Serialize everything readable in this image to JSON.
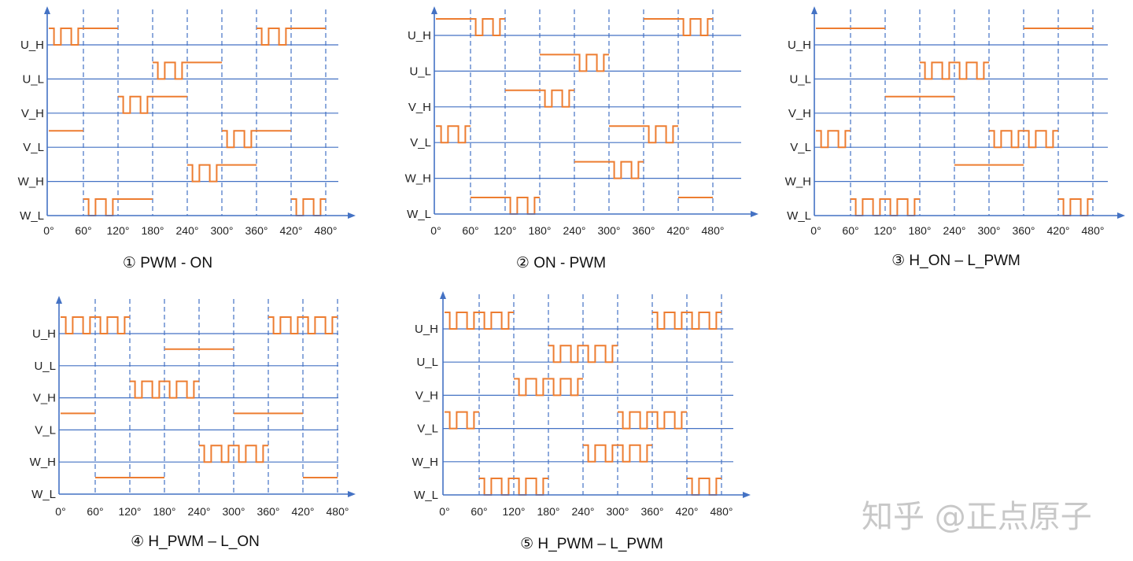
{
  "signals": [
    "U_H",
    "U_L",
    "V_H",
    "V_L",
    "W_H",
    "W_L"
  ],
  "angle_ticks": [
    "0°",
    "60°",
    "120°",
    "180°",
    "240°",
    "300°",
    "360°",
    "420°",
    "480°"
  ],
  "colors": {
    "axis": "#4472c4",
    "wave": "#ed7d31",
    "text": "#222222",
    "watermark": "#c8c8c8"
  },
  "watermark": "知乎 @正点原子",
  "panels": [
    {
      "caption": "① PWM - ON",
      "waves": {
        "U_H": [
          [
            0,
            60,
            "pwm"
          ],
          [
            60,
            120,
            "high"
          ],
          [
            360,
            420,
            "pwm"
          ],
          [
            420,
            480,
            "high"
          ]
        ],
        "U_L": [
          [
            180,
            240,
            "pwm"
          ],
          [
            240,
            300,
            "high"
          ]
        ],
        "V_H": [
          [
            120,
            180,
            "pwm"
          ],
          [
            180,
            240,
            "high"
          ]
        ],
        "V_L": [
          [
            0,
            60,
            "high"
          ],
          [
            300,
            360,
            "pwm"
          ],
          [
            360,
            420,
            "high"
          ]
        ],
        "W_H": [
          [
            240,
            300,
            "pwm"
          ],
          [
            300,
            360,
            "high"
          ]
        ],
        "W_L": [
          [
            60,
            120,
            "pwm"
          ],
          [
            120,
            180,
            "high"
          ],
          [
            420,
            480,
            "pwm"
          ]
        ]
      }
    },
    {
      "caption": "② ON - PWM",
      "waves": {
        "U_H": [
          [
            0,
            60,
            "high"
          ],
          [
            60,
            120,
            "pwm"
          ],
          [
            360,
            420,
            "high"
          ],
          [
            420,
            480,
            "pwm"
          ]
        ],
        "U_L": [
          [
            180,
            240,
            "high"
          ],
          [
            240,
            300,
            "pwm"
          ]
        ],
        "V_H": [
          [
            120,
            180,
            "high"
          ],
          [
            180,
            240,
            "pwm"
          ]
        ],
        "V_L": [
          [
            0,
            60,
            "pwm"
          ],
          [
            300,
            360,
            "high"
          ],
          [
            360,
            420,
            "pwm"
          ]
        ],
        "W_H": [
          [
            240,
            300,
            "high"
          ],
          [
            300,
            360,
            "pwm"
          ]
        ],
        "W_L": [
          [
            60,
            120,
            "high"
          ],
          [
            120,
            180,
            "pwm"
          ],
          [
            420,
            480,
            "high"
          ]
        ]
      }
    },
    {
      "caption": "③ H_ON – L_PWM",
      "waves": {
        "U_H": [
          [
            0,
            120,
            "high"
          ],
          [
            360,
            480,
            "high"
          ]
        ],
        "U_L": [
          [
            180,
            300,
            "pwm"
          ]
        ],
        "V_H": [
          [
            120,
            240,
            "high"
          ]
        ],
        "V_L": [
          [
            0,
            60,
            "pwm"
          ],
          [
            300,
            420,
            "pwm"
          ]
        ],
        "W_H": [
          [
            240,
            360,
            "high"
          ]
        ],
        "W_L": [
          [
            60,
            180,
            "pwm"
          ],
          [
            420,
            480,
            "pwm"
          ]
        ]
      }
    },
    {
      "caption": "④ H_PWM – L_ON",
      "waves": {
        "U_H": [
          [
            0,
            120,
            "pwm"
          ],
          [
            360,
            480,
            "pwm"
          ]
        ],
        "U_L": [
          [
            180,
            300,
            "high"
          ]
        ],
        "V_H": [
          [
            120,
            240,
            "pwm"
          ]
        ],
        "V_L": [
          [
            0,
            60,
            "high"
          ],
          [
            300,
            420,
            "high"
          ]
        ],
        "W_H": [
          [
            240,
            360,
            "pwm"
          ]
        ],
        "W_L": [
          [
            60,
            180,
            "high"
          ],
          [
            420,
            480,
            "high"
          ]
        ]
      }
    },
    {
      "caption": "⑤ H_PWM – L_PWM",
      "waves": {
        "U_H": [
          [
            0,
            120,
            "pwm"
          ],
          [
            360,
            480,
            "pwm"
          ]
        ],
        "U_L": [
          [
            180,
            300,
            "pwm"
          ]
        ],
        "V_H": [
          [
            120,
            240,
            "pwm"
          ]
        ],
        "V_L": [
          [
            0,
            60,
            "pwm"
          ],
          [
            300,
            420,
            "pwm"
          ]
        ],
        "W_H": [
          [
            240,
            360,
            "pwm"
          ]
        ],
        "W_L": [
          [
            60,
            180,
            "pwm"
          ],
          [
            420,
            480,
            "pwm"
          ]
        ]
      }
    }
  ]
}
